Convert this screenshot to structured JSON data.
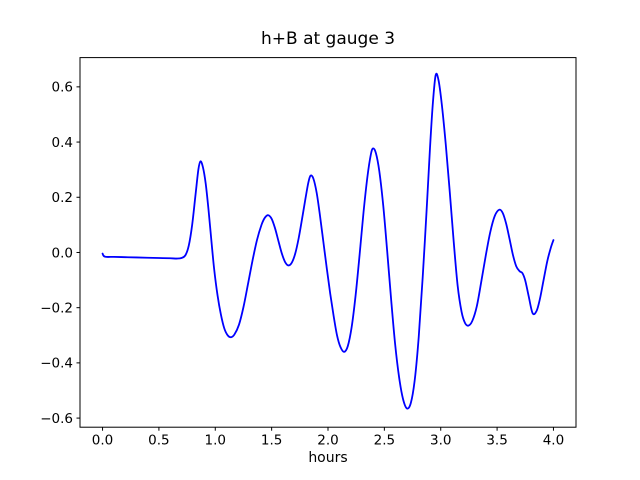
{
  "figure": {
    "background": "#ffffff",
    "frame_color": "#000000"
  },
  "chart_data": {
    "type": "line",
    "title": "h+B at gauge 3",
    "xlabel": "hours",
    "ylabel": "",
    "xlim": [
      -0.2,
      4.2
    ],
    "ylim": [
      -0.633,
      0.706
    ],
    "grid": false,
    "legend": null,
    "xticks": [
      0.0,
      0.5,
      1.0,
      1.5,
      2.0,
      2.5,
      3.0,
      3.5,
      4.0
    ],
    "xtick_labels": [
      "0.0",
      "0.5",
      "1.0",
      "1.5",
      "2.0",
      "2.5",
      "3.0",
      "3.5",
      "4.0"
    ],
    "yticks": [
      -0.6,
      -0.4,
      -0.2,
      0.0,
      0.2,
      0.4,
      0.6
    ],
    "ytick_labels": [
      "−0.6",
      "−0.4",
      "−0.2",
      "0.0",
      "0.2",
      "0.4",
      "0.6"
    ],
    "series": [
      {
        "name": "h+B",
        "color": "#0000ff",
        "linewidth": 1.8,
        "points": [
          [
            0.0,
            -0.004
          ],
          [
            0.02,
            -0.015
          ],
          [
            0.1,
            -0.016
          ],
          [
            0.2,
            -0.017
          ],
          [
            0.3,
            -0.018
          ],
          [
            0.4,
            -0.019
          ],
          [
            0.5,
            -0.02
          ],
          [
            0.6,
            -0.021
          ],
          [
            0.66,
            -0.022
          ],
          [
            0.7,
            -0.02
          ],
          [
            0.735,
            -0.01
          ],
          [
            0.765,
            0.025
          ],
          [
            0.795,
            0.1
          ],
          [
            0.825,
            0.21
          ],
          [
            0.85,
            0.3
          ],
          [
            0.868,
            0.33
          ],
          [
            0.89,
            0.31
          ],
          [
            0.915,
            0.25
          ],
          [
            0.94,
            0.155
          ],
          [
            0.965,
            0.045
          ],
          [
            0.99,
            -0.06
          ],
          [
            1.02,
            -0.155
          ],
          [
            1.05,
            -0.225
          ],
          [
            1.08,
            -0.275
          ],
          [
            1.11,
            -0.3
          ],
          [
            1.14,
            -0.307
          ],
          [
            1.17,
            -0.297
          ],
          [
            1.21,
            -0.262
          ],
          [
            1.25,
            -0.198
          ],
          [
            1.29,
            -0.115
          ],
          [
            1.33,
            -0.03
          ],
          [
            1.37,
            0.045
          ],
          [
            1.41,
            0.1
          ],
          [
            1.44,
            0.126
          ],
          [
            1.47,
            0.135
          ],
          [
            1.5,
            0.122
          ],
          [
            1.53,
            0.088
          ],
          [
            1.56,
            0.042
          ],
          [
            1.59,
            -0.003
          ],
          [
            1.62,
            -0.035
          ],
          [
            1.65,
            -0.047
          ],
          [
            1.68,
            -0.036
          ],
          [
            1.71,
            -0.003
          ],
          [
            1.74,
            0.052
          ],
          [
            1.77,
            0.122
          ],
          [
            1.8,
            0.195
          ],
          [
            1.825,
            0.252
          ],
          [
            1.845,
            0.278
          ],
          [
            1.87,
            0.268
          ],
          [
            1.9,
            0.215
          ],
          [
            1.93,
            0.13
          ],
          [
            1.96,
            0.035
          ],
          [
            1.99,
            -0.06
          ],
          [
            2.02,
            -0.15
          ],
          [
            2.05,
            -0.23
          ],
          [
            2.08,
            -0.3
          ],
          [
            2.11,
            -0.342
          ],
          [
            2.143,
            -0.36
          ],
          [
            2.175,
            -0.34
          ],
          [
            2.21,
            -0.27
          ],
          [
            2.245,
            -0.155
          ],
          [
            2.28,
            -0.01
          ],
          [
            2.315,
            0.145
          ],
          [
            2.35,
            0.275
          ],
          [
            2.38,
            0.355
          ],
          [
            2.4,
            0.377
          ],
          [
            2.425,
            0.36
          ],
          [
            2.455,
            0.295
          ],
          [
            2.49,
            0.17
          ],
          [
            2.525,
            0.005
          ],
          [
            2.56,
            -0.17
          ],
          [
            2.595,
            -0.33
          ],
          [
            2.63,
            -0.45
          ],
          [
            2.665,
            -0.53
          ],
          [
            2.7,
            -0.565
          ],
          [
            2.735,
            -0.545
          ],
          [
            2.77,
            -0.46
          ],
          [
            2.805,
            -0.305
          ],
          [
            2.84,
            -0.09
          ],
          [
            2.875,
            0.155
          ],
          [
            2.905,
            0.38
          ],
          [
            2.93,
            0.54
          ],
          [
            2.955,
            0.642
          ],
          [
            2.98,
            0.625
          ],
          [
            3.01,
            0.535
          ],
          [
            3.045,
            0.39
          ],
          [
            3.08,
            0.22
          ],
          [
            3.115,
            0.04
          ],
          [
            3.15,
            -0.12
          ],
          [
            3.185,
            -0.215
          ],
          [
            3.215,
            -0.255
          ],
          [
            3.245,
            -0.265
          ],
          [
            3.28,
            -0.248
          ],
          [
            3.32,
            -0.195
          ],
          [
            3.36,
            -0.105
          ],
          [
            3.4,
            -0.01
          ],
          [
            3.44,
            0.075
          ],
          [
            3.48,
            0.133
          ],
          [
            3.52,
            0.155
          ],
          [
            3.55,
            0.143
          ],
          [
            3.58,
            0.105
          ],
          [
            3.61,
            0.05
          ],
          [
            3.64,
            -0.008
          ],
          [
            3.67,
            -0.05
          ],
          [
            3.7,
            -0.068
          ],
          [
            3.725,
            -0.075
          ],
          [
            3.75,
            -0.102
          ],
          [
            3.78,
            -0.158
          ],
          [
            3.815,
            -0.22
          ],
          [
            3.85,
            -0.212
          ],
          [
            3.88,
            -0.168
          ],
          [
            3.91,
            -0.105
          ],
          [
            3.945,
            -0.032
          ],
          [
            3.975,
            0.015
          ],
          [
            4.0,
            0.045
          ]
        ]
      }
    ]
  }
}
